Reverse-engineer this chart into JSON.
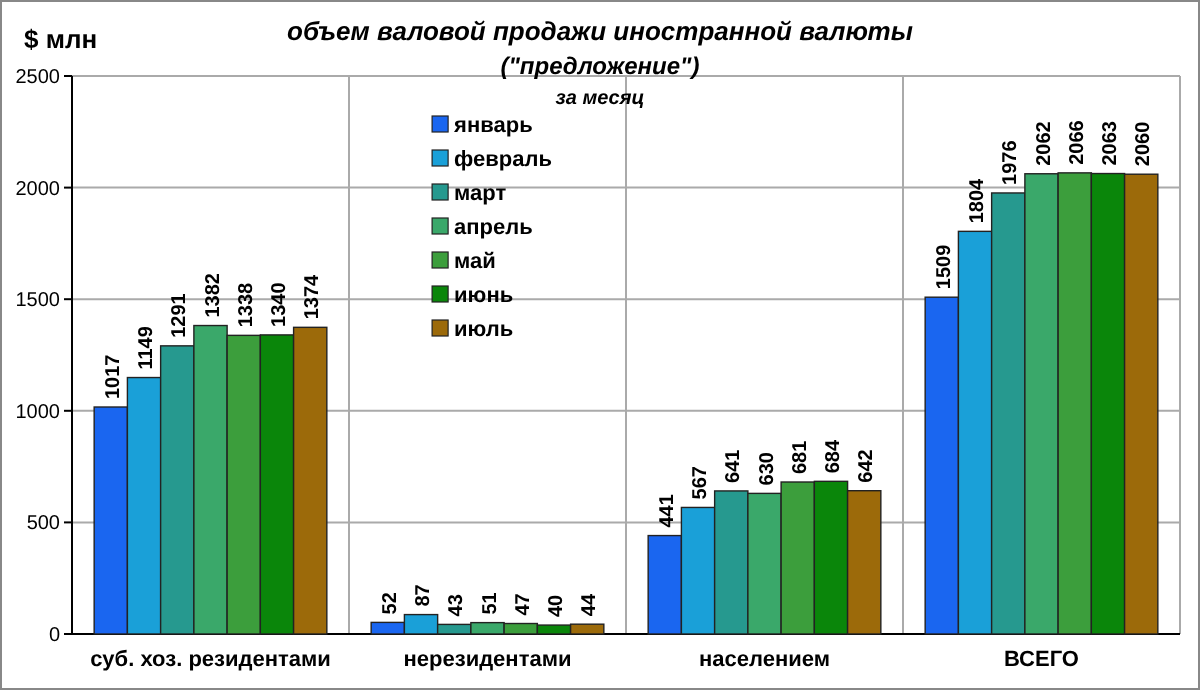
{
  "chart_data": {
    "type": "bar",
    "title": "объем валовой продажи иностранной валюты",
    "subtitle": "(\"предложение\")",
    "annotations": [
      "за месяц"
    ],
    "ylabel": "$ млн",
    "categories": [
      "суб. хоз. резидентами",
      "нерезидентами",
      "населением",
      "ВСЕГО"
    ],
    "series": [
      {
        "name": "январь",
        "color": "#1a66f0",
        "values": [
          1017,
          52,
          441,
          1509
        ]
      },
      {
        "name": "февраль",
        "color": "#1aa0d8",
        "values": [
          1149,
          87,
          567,
          1804
        ]
      },
      {
        "name": "март",
        "color": "#26998f",
        "values": [
          1291,
          43,
          641,
          1976
        ]
      },
      {
        "name": "апрель",
        "color": "#3aa86a",
        "values": [
          1382,
          51,
          630,
          2062
        ]
      },
      {
        "name": "май",
        "color": "#3c9e3c",
        "values": [
          1338,
          47,
          681,
          2066
        ]
      },
      {
        "name": "июнь",
        "color": "#0a860a",
        "values": [
          1340,
          40,
          684,
          2063
        ]
      },
      {
        "name": "июль",
        "color": "#9c6a0a",
        "values": [
          1374,
          44,
          642,
          2060
        ]
      }
    ],
    "ylim": [
      0,
      2500
    ],
    "yticks": [
      0,
      500,
      1000,
      1500,
      2000,
      2500
    ],
    "grid": true,
    "legend": "top",
    "data_labels": true
  }
}
